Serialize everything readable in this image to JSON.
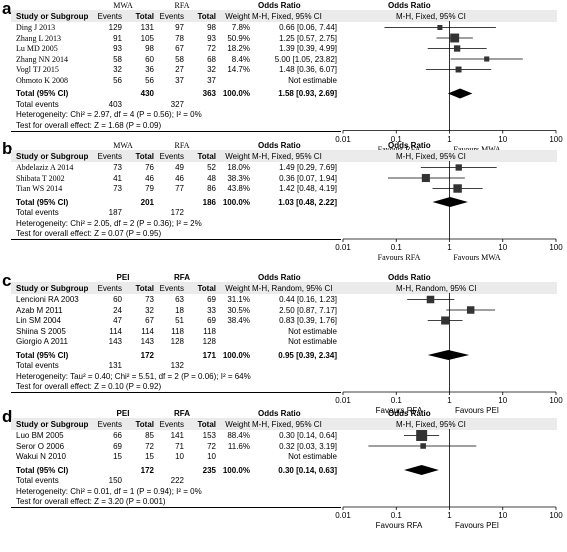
{
  "chart_data": [
    {
      "panel": "a",
      "type": "forest",
      "left_header": [
        "Study or Subgroup",
        "Events",
        "Total",
        "Events",
        "Total",
        "Weight",
        "M-H, Fixed, 95% CI"
      ],
      "group_headers": [
        "MWA",
        "RFA"
      ],
      "or_header": "Odds Ratio",
      "right_header": "M-H, Fixed, 95% CI",
      "studies": [
        {
          "name": "Ding J 2013",
          "e1": "129",
          "t1": "131",
          "e2": "97",
          "t2": "98",
          "weight": "7.8%",
          "ci_text": "0.66 [0.06, 7.44]",
          "or": 0.66,
          "lo": 0.06,
          "hi": 7.44,
          "w": 7.8
        },
        {
          "name": "Zhang L 2013",
          "e1": "91",
          "t1": "105",
          "e2": "78",
          "t2": "93",
          "weight": "50.9%",
          "ci_text": "1.25 [0.57, 2.75]",
          "or": 1.25,
          "lo": 0.57,
          "hi": 2.75,
          "w": 50.9
        },
        {
          "name": "Lu MD 2005",
          "e1": "93",
          "t1": "98",
          "e2": "67",
          "t2": "72",
          "weight": "18.2%",
          "ci_text": "1.39 [0.39, 4.99]",
          "or": 1.39,
          "lo": 0.39,
          "hi": 4.99,
          "w": 18.2
        },
        {
          "name": "Zhang NN 2014",
          "e1": "58",
          "t1": "60",
          "e2": "58",
          "t2": "68",
          "weight": "8.4%",
          "ci_text": "5.00 [1.05, 23.82]",
          "or": 5.0,
          "lo": 1.05,
          "hi": 23.82,
          "w": 8.4
        },
        {
          "name": "Vogl TJ 2015",
          "e1": "32",
          "t1": "36",
          "e2": "27",
          "t2": "32",
          "weight": "14.7%",
          "ci_text": "1.48 [0.36, 6.07]",
          "or": 1.48,
          "lo": 0.36,
          "hi": 6.07,
          "w": 14.7
        },
        {
          "name": "Ohmoto K 2008",
          "e1": "56",
          "t1": "56",
          "e2": "37",
          "t2": "37",
          "weight": "",
          "ci_text": "Not estimable",
          "or": null,
          "lo": null,
          "hi": null,
          "w": 0
        }
      ],
      "total": {
        "label": "Total (95% CI)",
        "t1": "430",
        "t2": "363",
        "weight": "100.0%",
        "ci_text": "1.58 [0.93, 2.69]",
        "or": 1.58,
        "lo": 0.93,
        "hi": 2.69
      },
      "total_events": {
        "label": "Total events",
        "e1": "403",
        "e2": "327"
      },
      "heterogeneity": "Heterogeneity: Chi² = 2.97, df = 4 (P = 0.56); I² = 0%",
      "overall": "Test for overall effect: Z = 1.68 (P = 0.09)",
      "axis_ticks": [
        "0.01",
        "0.1",
        "1",
        "10",
        "100"
      ],
      "favours_left": "Favours RFA",
      "favours_right": "Favours MWA"
    },
    {
      "panel": "b",
      "type": "forest",
      "left_header": [
        "Study or Subgroup",
        "Events",
        "Total",
        "Events",
        "Total",
        "Weight",
        "M-H, Fixed, 95% CI"
      ],
      "group_headers": [
        "MWA",
        "RFA"
      ],
      "or_header": "Odds Ratio",
      "right_header": "M-H, Fixed, 95% CI",
      "studies": [
        {
          "name": "Abdelaziz A 2014",
          "e1": "73",
          "t1": "76",
          "e2": "49",
          "t2": "52",
          "weight": "18.0%",
          "ci_text": "1.49 [0.29, 7.69]",
          "or": 1.49,
          "lo": 0.29,
          "hi": 7.69,
          "w": 18.0
        },
        {
          "name": "Shibata T 2002",
          "e1": "41",
          "t1": "46",
          "e2": "46",
          "t2": "48",
          "weight": "38.3%",
          "ci_text": "0.36 [0.07, 1.94]",
          "or": 0.36,
          "lo": 0.07,
          "hi": 1.94,
          "w": 38.3
        },
        {
          "name": "Tian WS 2014",
          "e1": "73",
          "t1": "79",
          "e2": "77",
          "t2": "86",
          "weight": "43.8%",
          "ci_text": "1.42 [0.48, 4.19]",
          "or": 1.42,
          "lo": 0.48,
          "hi": 4.19,
          "w": 43.8
        }
      ],
      "total": {
        "label": "Total (95% CI)",
        "t1": "201",
        "t2": "186",
        "weight": "100.0%",
        "ci_text": "1.03 [0.48, 2.22]",
        "or": 1.03,
        "lo": 0.48,
        "hi": 2.22
      },
      "total_events": {
        "label": "Total events",
        "e1": "187",
        "e2": "172"
      },
      "heterogeneity": "Heterogeneity: Chi² = 2.05, df = 2 (P = 0.36); I² = 2%",
      "overall": "Test for overall effect: Z = 0.07 (P = 0.95)",
      "axis_ticks": [
        "0.01",
        "0.1",
        "1",
        "10",
        "100"
      ],
      "favours_left": "Favours RFA",
      "favours_right": "Favours MWA"
    },
    {
      "panel": "c",
      "type": "forest",
      "left_header": [
        "Study or Subgroup",
        "Events",
        "Total",
        "Events",
        "Total",
        "Weight",
        "M-H, Random, 95% CI"
      ],
      "group_headers": [
        "PEI",
        "RFA"
      ],
      "or_header": "Odds Ratio",
      "right_header": "M-H, Random, 95% CI",
      "studies": [
        {
          "name": "Lencioni RA 2003",
          "e1": "60",
          "t1": "73",
          "e2": "63",
          "t2": "69",
          "weight": "31.1%",
          "ci_text": "0.44 [0.16, 1.23]",
          "or": 0.44,
          "lo": 0.16,
          "hi": 1.23,
          "w": 31.1
        },
        {
          "name": "Azab M 2011",
          "e1": "24",
          "t1": "32",
          "e2": "18",
          "t2": "33",
          "weight": "30.5%",
          "ci_text": "2.50 [0.87, 7.17]",
          "or": 2.5,
          "lo": 0.87,
          "hi": 7.17,
          "w": 30.5
        },
        {
          "name": "Lin SM 2004",
          "e1": "47",
          "t1": "67",
          "e2": "51",
          "t2": "69",
          "weight": "38.4%",
          "ci_text": "0.83 [0.39, 1.76]",
          "or": 0.83,
          "lo": 0.39,
          "hi": 1.76,
          "w": 38.4
        },
        {
          "name": "Shiina S 2005",
          "e1": "114",
          "t1": "114",
          "e2": "118",
          "t2": "118",
          "weight": "",
          "ci_text": "Not estimable",
          "or": null,
          "lo": null,
          "hi": null,
          "w": 0
        },
        {
          "name": "Giorgio A 2011",
          "e1": "143",
          "t1": "143",
          "e2": "128",
          "t2": "128",
          "weight": "",
          "ci_text": "Not estimable",
          "or": null,
          "lo": null,
          "hi": null,
          "w": 0
        }
      ],
      "total": {
        "label": "Total (95% CI)",
        "t1": "172",
        "t2": "171",
        "weight": "100.0%",
        "ci_text": "0.95 [0.39, 2.34]",
        "or": 0.95,
        "lo": 0.39,
        "hi": 2.34
      },
      "total_events": {
        "label": "Total events",
        "e1": "131",
        "e2": "132"
      },
      "heterogeneity": "Heterogeneity: Tau² = 0.40; Chi² = 5.51, df = 2 (P = 0.06); I² = 64%",
      "overall": "Test for overall effect: Z = 0.10 (P = 0.92)",
      "axis_ticks": [
        "0.01",
        "0.1",
        "1",
        "10",
        "100"
      ],
      "favours_left": "Favours RFA",
      "favours_right": "Favours PEI"
    },
    {
      "panel": "d",
      "type": "forest",
      "left_header": [
        "Study or Subgroup",
        "Events",
        "Total",
        "Events",
        "Total",
        "Weight",
        "M-H, Fixed, 95% CI"
      ],
      "group_headers": [
        "PEI",
        "RFA"
      ],
      "or_header": "Odds Ratio",
      "right_header": "M-H, Fixed, 95% CI",
      "studies": [
        {
          "name": "Luo BM 2005",
          "e1": "66",
          "t1": "85",
          "e2": "141",
          "t2": "153",
          "weight": "88.4%",
          "ci_text": "0.30 [0.14, 0.64]",
          "or": 0.3,
          "lo": 0.14,
          "hi": 0.64,
          "w": 88.4
        },
        {
          "name": "Seror O 2006",
          "e1": "69",
          "t1": "72",
          "e2": "71",
          "t2": "72",
          "weight": "11.6%",
          "ci_text": "0.32 [0.03, 3.19]",
          "or": 0.32,
          "lo": 0.03,
          "hi": 3.19,
          "w": 11.6
        },
        {
          "name": "Wakui N 2010",
          "e1": "15",
          "t1": "15",
          "e2": "10",
          "t2": "10",
          "weight": "",
          "ci_text": "Not estimable",
          "or": null,
          "lo": null,
          "hi": null,
          "w": 0
        }
      ],
      "total": {
        "label": "Total (95% CI)",
        "t1": "172",
        "t2": "235",
        "weight": "100.0%",
        "ci_text": "0.30 [0.14, 0.63]",
        "or": 0.3,
        "lo": 0.14,
        "hi": 0.63
      },
      "total_events": {
        "label": "Total events",
        "e1": "150",
        "e2": "222"
      },
      "heterogeneity": "Heterogeneity: Chi² = 0.01, df = 1 (P = 0.94); I² = 0%",
      "overall": "Test for overall effect: Z = 3.20 (P = 0.001)",
      "axis_ticks": [
        "0.01",
        "0.1",
        "1",
        "10",
        "100"
      ],
      "favours_left": "Favours RFA",
      "favours_right": "Favours PEI"
    }
  ],
  "panel_labels": [
    "a",
    "b",
    "c",
    "d"
  ]
}
